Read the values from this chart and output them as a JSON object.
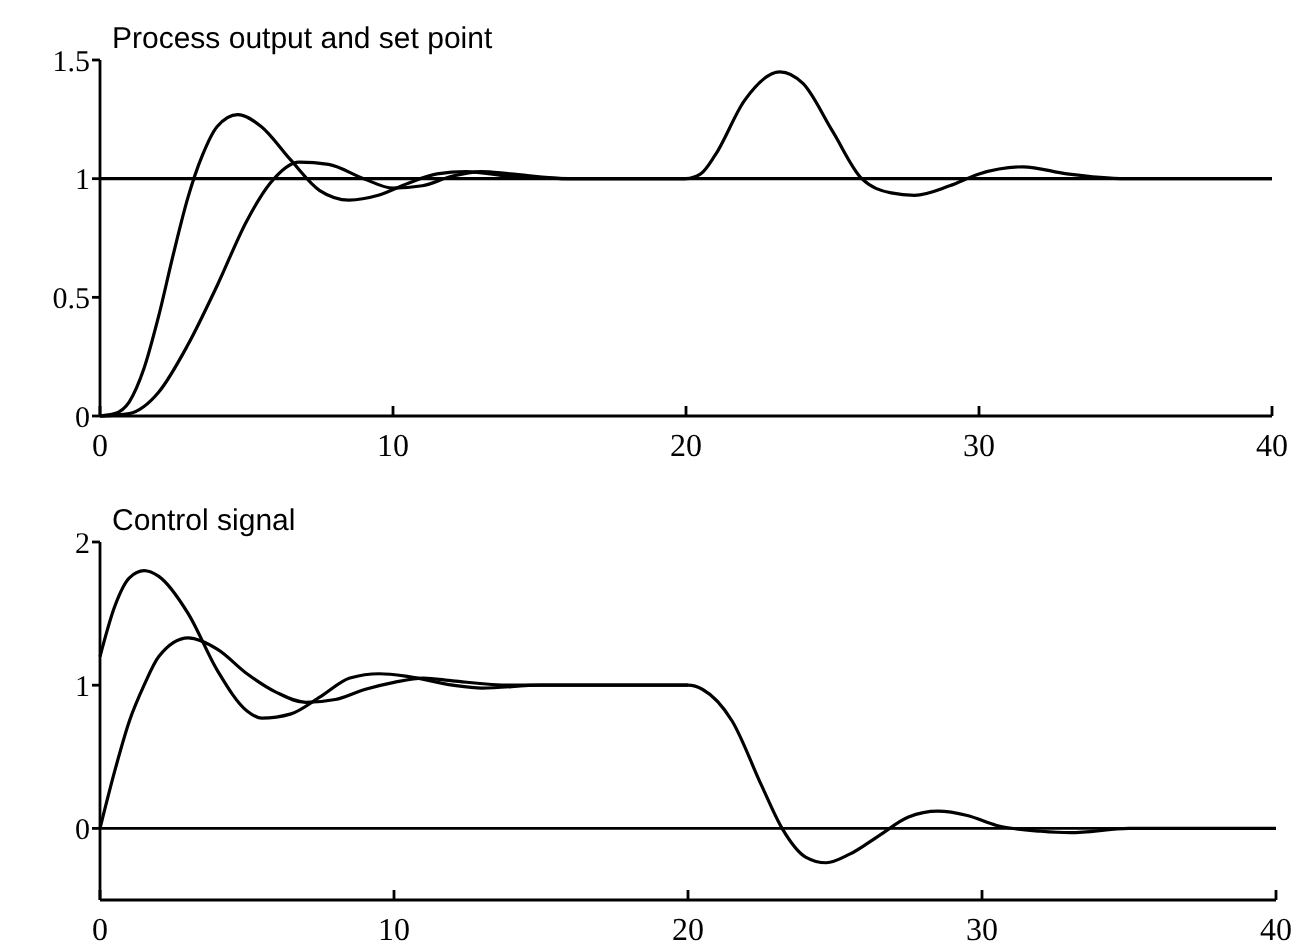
{
  "chart_data": [
    {
      "type": "line",
      "title": "Process output and set point",
      "xlim": [
        0,
        40
      ],
      "xticks": [
        0,
        10,
        20,
        30,
        40
      ],
      "ylim": [
        0,
        1.5
      ],
      "yticks": [
        0,
        0.5,
        1,
        1.5
      ],
      "grid": false,
      "marker": "none",
      "line_style": "solid",
      "series": [
        {
          "color": "#000000",
          "x": [
            0,
            40
          ],
          "values": [
            1,
            1
          ]
        },
        {
          "color": "#000000",
          "x": [
            0,
            0.5,
            1,
            1.5,
            2,
            2.5,
            3,
            3.5,
            4,
            4.7,
            5.5,
            6.5,
            7.5,
            8.5,
            9.5,
            10.5,
            11.5,
            12.5,
            14,
            16,
            20,
            20.5,
            21,
            22,
            23.2,
            24,
            25,
            26,
            27,
            27.8,
            29,
            30,
            31.5,
            33,
            35,
            40
          ],
          "values": [
            0,
            0.01,
            0.06,
            0.2,
            0.42,
            0.68,
            0.92,
            1.1,
            1.22,
            1.27,
            1.22,
            1.08,
            0.95,
            0.91,
            0.93,
            0.98,
            1.02,
            1.03,
            1.01,
            1,
            1,
            1.02,
            1.1,
            1.33,
            1.45,
            1.4,
            1.2,
            1,
            0.94,
            0.93,
            0.97,
            1.02,
            1.05,
            1.02,
            1,
            1
          ]
        },
        {
          "color": "#000000",
          "x": [
            0,
            1,
            1.5,
            2,
            3,
            4,
            5,
            5.8,
            6.8,
            7.8,
            9,
            10,
            11,
            12,
            13,
            14,
            16,
            20
          ],
          "values": [
            0,
            0.01,
            0.04,
            0.1,
            0.3,
            0.55,
            0.82,
            0.98,
            1.07,
            1.06,
            1,
            0.96,
            0.97,
            1.01,
            1.03,
            1.02,
            1,
            1
          ]
        }
      ]
    },
    {
      "type": "line",
      "title": "Control signal",
      "xlim": [
        0,
        40
      ],
      "xticks": [
        0,
        10,
        20,
        30,
        40
      ],
      "ylim": [
        -0.5,
        2
      ],
      "yticks": [
        0,
        1,
        2
      ],
      "grid": false,
      "marker": "none",
      "line_style": "solid",
      "ref_lines": [
        {
          "axis": "y",
          "value": 0,
          "color": "#000000"
        }
      ],
      "series": [
        {
          "color": "#000000",
          "x": [
            0,
            0.5,
            1,
            1.5,
            2,
            3,
            4,
            5,
            5.5,
            6.5,
            7.5,
            8.5,
            9.5,
            10.5,
            12,
            13,
            15,
            20,
            20.5,
            21.5,
            22.5,
            23.2,
            24,
            24.7,
            25.5,
            26.5,
            27.5,
            28.5,
            29.5,
            30.5,
            32,
            33,
            35,
            40
          ],
          "values": [
            1.2,
            1.55,
            1.75,
            1.8,
            1.76,
            1.5,
            1.1,
            0.82,
            0.77,
            0.8,
            0.92,
            1.05,
            1.08,
            1.06,
            1,
            0.98,
            1,
            1,
            0.97,
            0.75,
            0.3,
            0,
            -0.2,
            -0.24,
            -0.18,
            -0.05,
            0.08,
            0.12,
            0.09,
            0.02,
            -0.02,
            -0.03,
            0,
            0
          ]
        },
        {
          "color": "#000000",
          "x": [
            0,
            0.5,
            1,
            1.5,
            2,
            3,
            4,
            5,
            6,
            7,
            8,
            9,
            10,
            11,
            12,
            14,
            20
          ],
          "values": [
            0,
            0.4,
            0.75,
            1,
            1.2,
            1.33,
            1.25,
            1.08,
            0.95,
            0.88,
            0.9,
            0.97,
            1.02,
            1.05,
            1.03,
            1,
            1
          ]
        }
      ]
    }
  ]
}
